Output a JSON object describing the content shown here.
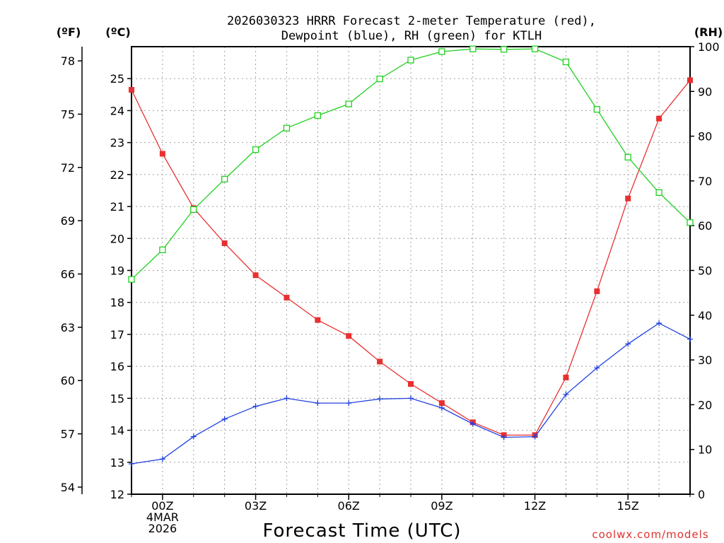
{
  "chart_data": {
    "type": "line",
    "title_line1": "2026030323 HRRR Forecast 2-meter Temperature (red),",
    "title_line2": "Dewpoint (blue), RH (green) for KTLH",
    "xlabel": "Forecast Time (UTC)",
    "credit": "coolwx.com/models",
    "units": {
      "fahrenheit": "(ºF)",
      "celsius": "(ºC)",
      "rh": "(RH)"
    },
    "x": [
      -1,
      0,
      1,
      2,
      3,
      4,
      5,
      6,
      7,
      8,
      9,
      10,
      11,
      12,
      13,
      14,
      15,
      16,
      17
    ],
    "xlim": [
      -1,
      17
    ],
    "x_ticks": [
      {
        "value": 0,
        "lines": [
          "00Z",
          "4MAR",
          "2026"
        ]
      },
      {
        "value": 3,
        "lines": [
          "03Z"
        ]
      },
      {
        "value": 6,
        "lines": [
          "06Z"
        ]
      },
      {
        "value": 9,
        "lines": [
          "09Z"
        ]
      },
      {
        "value": 12,
        "lines": [
          "12Z"
        ]
      },
      {
        "value": 15,
        "lines": [
          "15Z"
        ]
      }
    ],
    "celsius_axis": {
      "ylim": [
        12,
        26
      ],
      "ticks": [
        "12",
        "13",
        "14",
        "15",
        "16",
        "17",
        "18",
        "19",
        "20",
        "21",
        "22",
        "23",
        "24",
        "25"
      ]
    },
    "fahrenheit_axis": {
      "ticks": [
        "54",
        "57",
        "60",
        "63",
        "66",
        "69",
        "72",
        "75",
        "78"
      ]
    },
    "rh_axis": {
      "ylim": [
        0,
        100
      ],
      "ticks": [
        "0",
        "10",
        "20",
        "30",
        "40",
        "50",
        "60",
        "70",
        "80",
        "90",
        "100"
      ]
    },
    "series": [
      {
        "name": "Temperature",
        "axis": "celsius",
        "color": "#e83030",
        "marker": "filled-square",
        "values": [
          24.65,
          22.65,
          20.95,
          19.85,
          18.85,
          18.15,
          17.45,
          16.95,
          16.15,
          15.45,
          14.85,
          14.25,
          13.85,
          13.85,
          15.65,
          18.35,
          21.25,
          23.75,
          24.95
        ]
      },
      {
        "name": "Dewpoint",
        "axis": "celsius",
        "color": "#2040e0",
        "marker": "plus",
        "values": [
          12.95,
          13.1,
          13.8,
          14.35,
          14.75,
          15.0,
          14.85,
          14.85,
          14.98,
          15.0,
          14.7,
          14.2,
          13.78,
          13.8,
          15.12,
          15.95,
          16.7,
          17.35,
          16.85
        ]
      },
      {
        "name": "RH",
        "axis": "rh",
        "color": "#20d020",
        "marker": "open-square",
        "values": [
          48,
          54.6,
          63.6,
          70.4,
          77,
          81.8,
          84.6,
          87.2,
          92.8,
          97,
          98.9,
          99.5,
          99.4,
          99.5,
          96.6,
          86,
          75.3,
          67.4,
          60.7
        ]
      }
    ]
  }
}
